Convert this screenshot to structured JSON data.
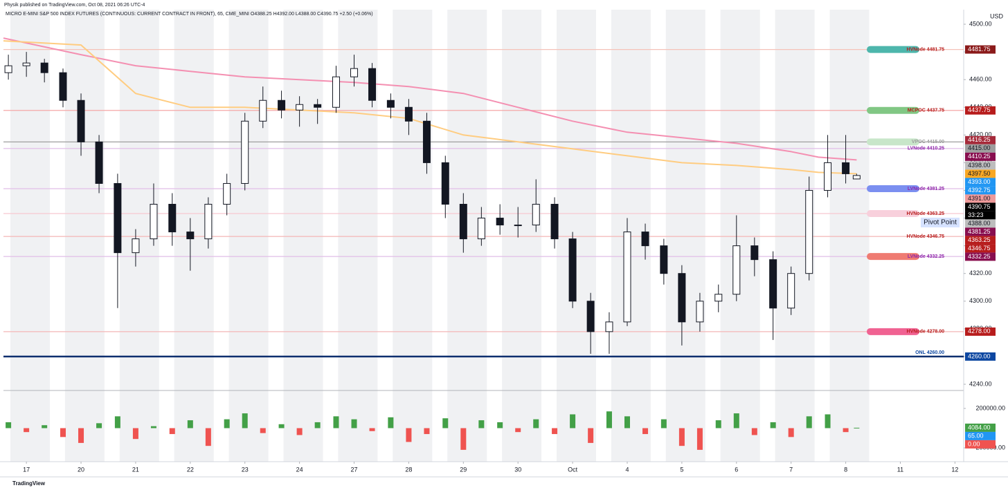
{
  "chart_data": {
    "type": "candlestick",
    "header": "Physik published on TradingView.com, Oct 08, 2021 06:26 UTC-4",
    "title": "MICRO E-MINI S&P 500 INDEX FUTURES (CONTINUOUS: CURRENT CONTRACT IN FRONT), 65, CME_MINI   O4388.25   H4392.00   L4388.00   C4390.75   +2.50 (+0.06%)",
    "currency": "USD",
    "footer": "TradingView",
    "annotation": "Pivot Point",
    "up_color": "#ffffff",
    "down_color": "#131722",
    "wick_color": "#131722",
    "xlim": [
      -0.42,
      17.16
    ],
    "xticks": [
      {
        "value": 0,
        "label": "17"
      },
      {
        "value": 1,
        "label": "20"
      },
      {
        "value": 2,
        "label": "21"
      },
      {
        "value": 3,
        "label": "22"
      },
      {
        "value": 4,
        "label": "23"
      },
      {
        "value": 5,
        "label": "24"
      },
      {
        "value": 6,
        "label": "27"
      },
      {
        "value": 7,
        "label": "28"
      },
      {
        "value": 8,
        "label": "29"
      },
      {
        "value": 9,
        "label": "30"
      },
      {
        "value": 10,
        "label": "Oct"
      },
      {
        "value": 11,
        "label": "4"
      },
      {
        "value": 12,
        "label": "5"
      },
      {
        "value": 13,
        "label": "6"
      },
      {
        "value": 14,
        "label": "7"
      },
      {
        "value": 15,
        "label": "8"
      },
      {
        "value": 16,
        "label": "11"
      },
      {
        "value": 17,
        "label": "12"
      }
    ],
    "ylim": [
      4235.5,
      4510.5
    ],
    "yticks": [
      {
        "value": 4240,
        "label": "4240.00"
      },
      {
        "value": 4260,
        "label": "4260.00"
      },
      {
        "value": 4280,
        "label": "4280.00"
      },
      {
        "value": 4300,
        "label": "4300.00"
      },
      {
        "value": 4320,
        "label": "4320.00"
      },
      {
        "value": 4340,
        "label": "4340.00"
      },
      {
        "value": 4360,
        "label": "4360.00"
      },
      {
        "value": 4380,
        "label": "4380.00"
      },
      {
        "value": 4400,
        "label": "4400.00"
      },
      {
        "value": 4420,
        "label": "4420.00"
      },
      {
        "value": 4440,
        "label": "4440.00"
      },
      {
        "value": 4460,
        "label": "4460.00"
      },
      {
        "value": 4480,
        "label": "4480.00"
      },
      {
        "value": 4500,
        "label": "4500.00"
      }
    ],
    "grid": false,
    "x": [
      -0.33,
      0,
      0.33,
      0.67,
      1,
      1.33,
      1.67,
      2,
      2.33,
      2.67,
      3,
      3.33,
      3.67,
      4,
      4.33,
      4.67,
      5,
      5.33,
      5.67,
      6,
      6.33,
      6.67,
      7,
      7.33,
      7.67,
      8,
      8.33,
      8.67,
      9,
      9.33,
      9.67,
      10,
      10.33,
      10.67,
      11,
      11.33,
      11.67,
      12,
      12.33,
      12.67,
      13,
      13.33,
      13.67,
      14,
      14.33,
      14.67,
      15,
      15.2
    ],
    "open": [
      4465,
      4470,
      4472,
      4465,
      4445,
      4415,
      4385,
      4335,
      4345,
      4370,
      4350,
      4345,
      4370,
      4385,
      4430,
      4445,
      4438,
      4442,
      4440,
      4462,
      4468,
      4445,
      4440,
      4430,
      4400,
      4370,
      4345,
      4360,
      4355,
      4355,
      4370,
      4345,
      4300,
      4278,
      4285,
      4350,
      4340,
      4320,
      4285,
      4300,
      4305,
      4340,
      4330,
      4295,
      4320,
      4380,
      4400,
      4388.25
    ],
    "high": [
      4478,
      4480,
      4475,
      4468,
      4450,
      4420,
      4392,
      4352,
      4385,
      4378,
      4360,
      4375,
      4392,
      4436,
      4455,
      4452,
      4448,
      4446,
      4470,
      4478,
      4472,
      4450,
      4446,
      4436,
      4405,
      4378,
      4368,
      4370,
      4368,
      4388,
      4375,
      4350,
      4306,
      4292,
      4360,
      4356,
      4345,
      4326,
      4306,
      4312,
      4362,
      4346,
      4336,
      4325,
      4390,
      4420,
      4420,
      4392
    ],
    "low": [
      4460,
      4462,
      4458,
      4440,
      4405,
      4378,
      4295,
      4325,
      4340,
      4340,
      4322,
      4338,
      4362,
      4380,
      4425,
      4432,
      4426,
      4428,
      4436,
      4455,
      4440,
      4432,
      4420,
      4392,
      4360,
      4335,
      4340,
      4348,
      4346,
      4350,
      4338,
      4295,
      4262,
      4262,
      4282,
      4330,
      4312,
      4268,
      4278,
      4292,
      4300,
      4318,
      4272,
      4290,
      4315,
      4375,
      4385,
      4388
    ],
    "close": [
      4470,
      4472,
      4465,
      4445,
      4415,
      4385,
      4335,
      4345,
      4370,
      4350,
      4345,
      4370,
      4385,
      4430,
      4445,
      4438,
      4442,
      4440,
      4462,
      4468,
      4445,
      4440,
      4430,
      4400,
      4370,
      4345,
      4360,
      4355,
      4355,
      4370,
      4345,
      4300,
      4278,
      4285,
      4350,
      4340,
      4320,
      4285,
      4300,
      4305,
      4340,
      4330,
      4295,
      4320,
      4380,
      4400,
      4392,
      4390.75
    ],
    "series": [
      {
        "color": "#f48fb1",
        "x": [
          -0.42,
          1,
          2,
          3,
          4,
          5,
          6,
          7,
          8,
          9,
          10,
          11,
          12,
          13,
          14,
          14.5,
          15.2
        ],
        "values": [
          4490,
          4478,
          4470,
          4466,
          4462,
          4460,
          4458,
          4455,
          4450,
          4440,
          4430,
          4422,
          4418,
          4414,
          4408,
          4404,
          4402
        ]
      },
      {
        "color": "#ffcc80",
        "x": [
          -0.42,
          1,
          2,
          3,
          4,
          5,
          6,
          7,
          8,
          9,
          10,
          11,
          12,
          13,
          14,
          14.5,
          15.2
        ],
        "values": [
          4488,
          4485,
          4450,
          4440,
          4440,
          4438,
          4436,
          4432,
          4420,
          4415,
          4410,
          4405,
          4400,
          4398,
          4395,
          4393,
          4392
        ]
      }
    ],
    "levels": [
      {
        "label": "HVNode 4481.75",
        "value": 4481.75,
        "line": "#f5c2b8",
        "text": "#b71c1c",
        "pill": "#4db6ac"
      },
      {
        "label": "MCPOC 4437.75",
        "value": 4437.75,
        "line": "#f4a6a6",
        "text": "#b71c1c",
        "pill": "#81c784"
      },
      {
        "label": "VPOC 4415.00",
        "value": 4415.0,
        "line": "#9e9e9e",
        "text": "#9e9e9e",
        "pill": "#c8e6c9"
      },
      {
        "label": "LVNode 4410.25",
        "value": 4410.25,
        "line": "#e1bee7",
        "text": "#8e24aa",
        "pill": null
      },
      {
        "label": "LVNode 4381.25",
        "value": 4381.25,
        "line": "#e1bee7",
        "text": "#8e24aa",
        "pill": "#7b8ff0"
      },
      {
        "label": "HVNode 4363.25",
        "value": 4363.25,
        "line": "#f8c8d0",
        "text": "#b71c1c",
        "pill": "#f8d0dc"
      },
      {
        "label": "HVNode 4346.75",
        "value": 4346.75,
        "line": "#f4b6b6",
        "text": "#b71c1c",
        "pill": null
      },
      {
        "label": "LVNode 4332.25",
        "value": 4332.25,
        "line": "#e1bee7",
        "text": "#8e24aa",
        "pill": "#ef7b72"
      },
      {
        "label": "HVNode 4278.00",
        "value": 4278.0,
        "line": "#f4b6b6",
        "text": "#b71c1c",
        "pill": "#f06292"
      },
      {
        "label": "ONL 4260.00",
        "value": 4260.0,
        "line": "#0d2e6e",
        "text": "#0d47a1",
        "pill": null
      }
    ],
    "price_tags": [
      {
        "value": 4481.75,
        "label": "4481.75",
        "color": "#8b1a1a",
        "text_color": "#ffffff"
      },
      {
        "value": 4437.75,
        "label": "4437.75",
        "color": "#b71c1c",
        "text_color": "#ffffff"
      },
      {
        "value": 4416.25,
        "label": "4416.25",
        "color": "#a52a3a",
        "text_color": "#ffffff"
      },
      {
        "value": 4415.0,
        "label": "4415.00",
        "color": "#9e9e9e",
        "text_color": "#131722"
      },
      {
        "value": 4410.25,
        "label": "4410.25",
        "color": "#880e4f",
        "text_color": "#ffffff"
      },
      {
        "value": 4398.0,
        "label": "4398.00",
        "color": "#bdbdbd",
        "text_color": "#131722"
      },
      {
        "value": 4397.5,
        "label": "4397.50",
        "color": "#f9a825",
        "text_color": "#131722"
      },
      {
        "value": 4393.0,
        "label": "4393.00",
        "color": "#2196f3",
        "text_color": "#ffffff"
      },
      {
        "value": 4392.75,
        "label": "4392.75",
        "color": "#2196f3",
        "text_color": "#ffffff"
      },
      {
        "value": 4391.0,
        "label": "4391.00",
        "color": "#ef9a9a",
        "text_color": "#131722"
      },
      {
        "value": 4390.75,
        "label": "4390.75",
        "color": "#000000",
        "text_color": "#ffffff",
        "sublabel": "33:23"
      },
      {
        "value": 4388.0,
        "label": "4388.00",
        "color": "#bdbdbd",
        "text_color": "#131722"
      },
      {
        "value": 4381.25,
        "label": "4381.25",
        "color": "#880e4f",
        "text_color": "#ffffff"
      },
      {
        "value": 4363.25,
        "label": "4363.25",
        "color": "#b71c1c",
        "text_color": "#ffffff"
      },
      {
        "value": 4346.75,
        "label": "4346.75",
        "color": "#b71c1c",
        "text_color": "#ffffff"
      },
      {
        "value": 4332.25,
        "label": "4332.25",
        "color": "#880e4f",
        "text_color": "#ffffff"
      },
      {
        "value": 4278.0,
        "label": "4278.00",
        "color": "#b71c1c",
        "text_color": "#ffffff"
      },
      {
        "value": 4260.0,
        "label": "4260.00",
        "color": "#0d47a1",
        "text_color": "#ffffff"
      }
    ],
    "volume": {
      "up_color": "#43a047",
      "down_color": "#ef5350",
      "values": [
        60000,
        -40000,
        30000,
        -90000,
        -150000,
        50000,
        120000,
        -110000,
        20000,
        -60000,
        80000,
        -180000,
        90000,
        150000,
        -50000,
        40000,
        -70000,
        60000,
        120000,
        90000,
        -30000,
        110000,
        -140000,
        -60000,
        100000,
        -220000,
        80000,
        60000,
        -40000,
        90000,
        -60000,
        140000,
        -150000,
        170000,
        120000,
        -60000,
        90000,
        -180000,
        -220000,
        80000,
        150000,
        -70000,
        60000,
        -90000,
        120000,
        140000,
        -40000,
        4084
      ],
      "ylim": [
        -340000,
        375000
      ],
      "yticks": [
        {
          "value": 200000,
          "label": "200000.00"
        },
        {
          "value": -200000,
          "label": "−200000.00"
        }
      ],
      "tags": [
        {
          "value": 4084,
          "label": "4084.00",
          "color": "#43a047"
        },
        {
          "value": 65,
          "label": "65.00",
          "color": "#2196f3"
        },
        {
          "value": 0,
          "label": "0.00",
          "color": "#ef5350"
        }
      ]
    }
  }
}
